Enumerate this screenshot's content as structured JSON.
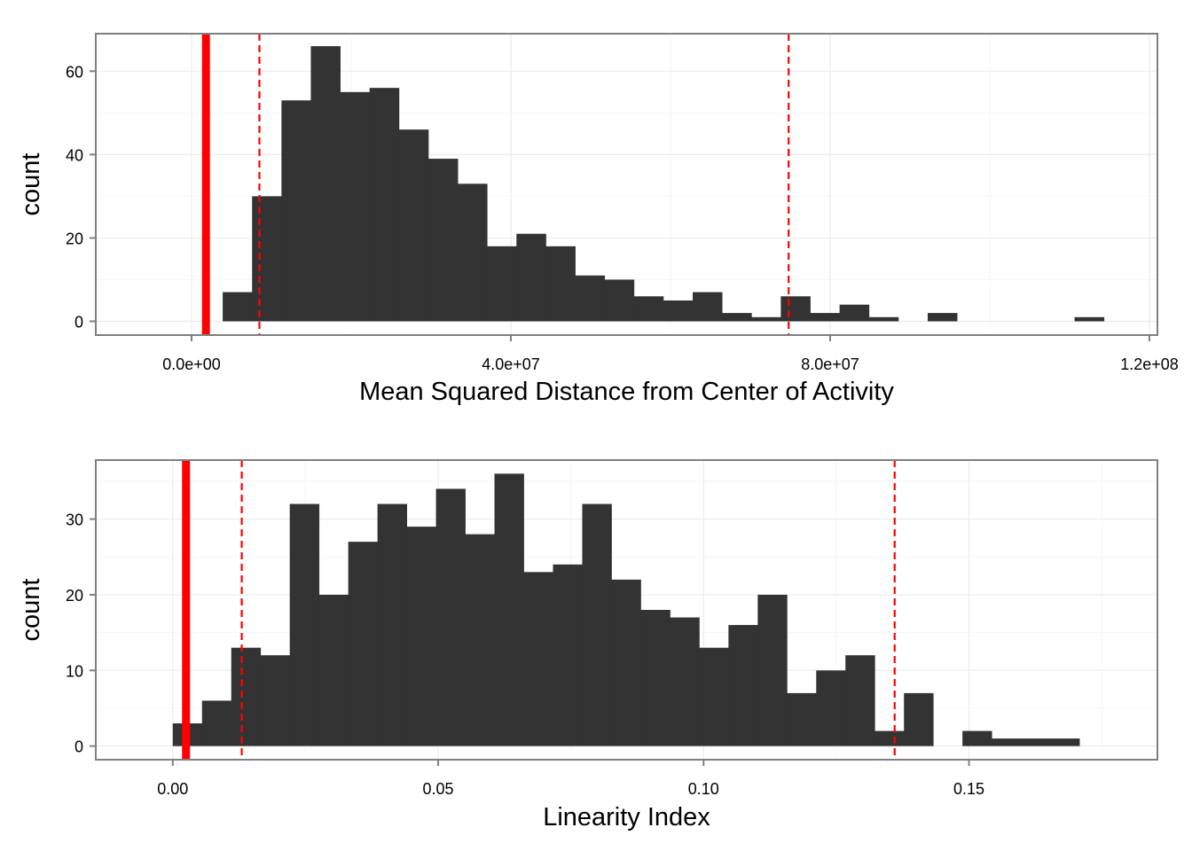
{
  "chart_data": [
    {
      "type": "bar",
      "subtype": "histogram",
      "xlabel": "Mean Squared Distance from Center of Activity",
      "ylabel": "count",
      "xlim": [
        -12000000,
        121000000
      ],
      "ylim": [
        -3.3,
        69
      ],
      "x_ticks": [
        {
          "value": 0,
          "label": "0.0e+00"
        },
        {
          "value": 40000000,
          "label": "4.0e+07"
        },
        {
          "value": 80000000,
          "label": "8.0e+07"
        },
        {
          "value": 120000000,
          "label": "1.2e+08"
        }
      ],
      "y_ticks": [
        {
          "value": 0,
          "label": "0"
        },
        {
          "value": 20,
          "label": "20"
        },
        {
          "value": 40,
          "label": "40"
        },
        {
          "value": 60,
          "label": "60"
        }
      ],
      "bin_width": 3680000,
      "bin_starts": [
        3900000,
        7580000,
        11260000,
        14940000,
        18620000,
        22300000,
        25980000,
        29660000,
        33340000,
        37020000,
        40700000,
        44380000,
        48060000,
        51740000,
        55420000,
        59100000,
        62780000,
        66460000,
        70140000,
        73820000,
        77500000,
        81180000,
        84860000,
        88540000,
        92220000,
        95900000,
        99580000,
        103260000,
        106940000,
        110620000
      ],
      "counts": [
        7,
        30,
        53,
        66,
        55,
        56,
        46,
        39,
        33,
        18,
        21,
        18,
        11,
        10,
        6,
        5,
        7,
        2,
        1,
        6,
        2,
        4,
        1,
        0,
        2,
        0,
        0,
        0,
        0,
        1
      ],
      "bar_color": "#333333",
      "reference_lines": [
        {
          "value": 1800000,
          "style": "solid",
          "color": "#ff0000"
        },
        {
          "value": 8500000,
          "style": "dashed",
          "color": "#ff0000"
        },
        {
          "value": 74800000,
          "style": "dashed",
          "color": "#ff0000"
        }
      ],
      "grid": true
    },
    {
      "type": "bar",
      "subtype": "histogram",
      "xlabel": "Linearity Index",
      "ylabel": "count",
      "xlim": [
        -0.0145,
        0.1855
      ],
      "ylim": [
        -1.8,
        37.8
      ],
      "x_ticks": [
        {
          "value": 0.0,
          "label": "0.00"
        },
        {
          "value": 0.05,
          "label": "0.05"
        },
        {
          "value": 0.1,
          "label": "0.10"
        },
        {
          "value": 0.15,
          "label": "0.15"
        }
      ],
      "y_ticks": [
        {
          "value": 0,
          "label": "0"
        },
        {
          "value": 10,
          "label": "10"
        },
        {
          "value": 20,
          "label": "20"
        },
        {
          "value": 30,
          "label": "30"
        }
      ],
      "bin_width": 0.00551,
      "bin_starts": [
        0.0,
        0.00551,
        0.01102,
        0.01653,
        0.02204,
        0.02755,
        0.03306,
        0.03857,
        0.04408,
        0.04959,
        0.0551,
        0.06061,
        0.06612,
        0.07163,
        0.07714,
        0.08265,
        0.08816,
        0.09367,
        0.09918,
        0.10469,
        0.1102,
        0.11571,
        0.12122,
        0.12673,
        0.13224,
        0.13775,
        0.14326,
        0.14877,
        0.15428,
        0.15979,
        0.1653
      ],
      "counts": [
        3,
        6,
        13,
        12,
        32,
        20,
        27,
        32,
        29,
        34,
        28,
        36,
        23,
        24,
        32,
        22,
        18,
        17,
        13,
        16,
        20,
        7,
        10,
        12,
        2,
        7,
        0,
        2,
        1,
        1,
        1
      ],
      "bar_color": "#333333",
      "reference_lines": [
        {
          "value": 0.0025,
          "style": "solid",
          "color": "#ff0000"
        },
        {
          "value": 0.013,
          "style": "dashed",
          "color": "#ff0000"
        },
        {
          "value": 0.136,
          "style": "dashed",
          "color": "#ff0000"
        }
      ],
      "grid": true
    }
  ]
}
